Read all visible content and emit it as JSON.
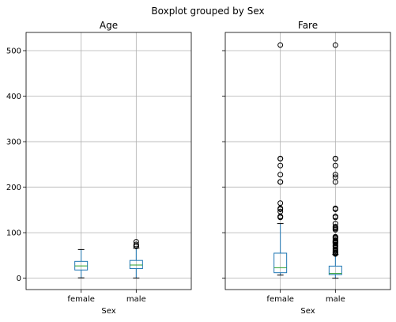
{
  "chart_data": {
    "type": "box",
    "title": "Boxplot grouped by Sex",
    "ylim": [
      -25,
      540
    ],
    "yticks": [
      0,
      100,
      200,
      300,
      400,
      500
    ],
    "grid": true,
    "subplots": [
      {
        "title": "Age",
        "xlabel": "Sex",
        "categories": [
          "female",
          "male"
        ],
        "boxes": [
          {
            "category": "female",
            "whisker_low": 0.75,
            "q1": 18,
            "median": 27,
            "q3": 37,
            "whisker_high": 63,
            "outliers": []
          },
          {
            "category": "male",
            "whisker_low": 0.42,
            "q1": 21,
            "median": 29,
            "q3": 39,
            "whisker_high": 66,
            "outliers": [
              70,
              70.5,
              71,
              74,
              80
            ]
          }
        ]
      },
      {
        "title": "Fare",
        "xlabel": "Sex",
        "categories": [
          "female",
          "male"
        ],
        "boxes": [
          {
            "category": "female",
            "whisker_low": 6.75,
            "q1": 12.07,
            "median": 23,
            "q3": 55,
            "whisker_high": 120,
            "outliers": [
              133.65,
              134.5,
              135.63,
              146.52,
              151.55,
              153.46,
              164.87,
              211.34,
              211.5,
              227.53,
              247.52,
              262.38,
              263,
              512.33
            ]
          },
          {
            "category": "male",
            "whisker_low": 0,
            "q1": 7.9,
            "median": 10.5,
            "q3": 26.55,
            "whisker_high": 52,
            "outliers": [
              53.1,
              55,
              56.5,
              57,
              59.4,
              61.2,
              63.4,
              66.6,
              69.55,
              71,
              73.5,
              76.73,
              77.29,
              78.85,
              79.2,
              80,
              82.17,
              83.16,
              86.5,
              89.1,
              90,
              91.08,
              106.43,
              108.9,
              110.88,
              113.28,
              120,
              133.65,
              135.63,
              151.55,
              153.46,
              211.34,
              221.78,
              227.53,
              247.52,
              262.38,
              263,
              512.33
            ]
          }
        ]
      }
    ]
  },
  "colors": {
    "box": "#1f77b4",
    "median": "#2ca02c",
    "whisker": "#000000",
    "grid": "#b0b0b0",
    "spine": "#000000"
  }
}
